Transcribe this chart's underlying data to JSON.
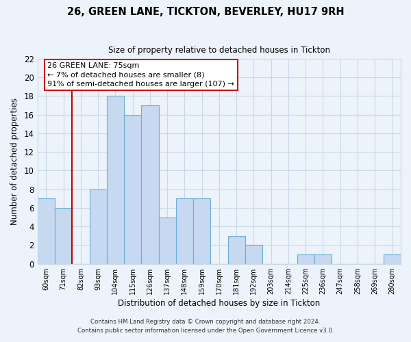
{
  "title": "26, GREEN LANE, TICKTON, BEVERLEY, HU17 9RH",
  "subtitle": "Size of property relative to detached houses in Tickton",
  "xlabel": "Distribution of detached houses by size in Tickton",
  "ylabel": "Number of detached properties",
  "bar_labels": [
    "60sqm",
    "71sqm",
    "82sqm",
    "93sqm",
    "104sqm",
    "115sqm",
    "126sqm",
    "137sqm",
    "148sqm",
    "159sqm",
    "170sqm",
    "181sqm",
    "192sqm",
    "203sqm",
    "214sqm",
    "225sqm",
    "236sqm",
    "247sqm",
    "258sqm",
    "269sqm",
    "280sqm"
  ],
  "bar_values": [
    7,
    6,
    0,
    8,
    18,
    16,
    17,
    5,
    7,
    7,
    0,
    3,
    2,
    0,
    0,
    1,
    1,
    0,
    0,
    0,
    1
  ],
  "bar_color": "#c6d9f0",
  "bar_edge_color": "#6aaed6",
  "ylim": [
    0,
    22
  ],
  "yticks": [
    0,
    2,
    4,
    6,
    8,
    10,
    12,
    14,
    16,
    18,
    20,
    22
  ],
  "grid_color": "#c8d8e8",
  "background_color": "#edf3fb",
  "property_line_label": "26 GREEN LANE: 75sqm",
  "annotation_line1": "← 7% of detached houses are smaller (8)",
  "annotation_line2": "91% of semi-detached houses are larger (107) →",
  "annotation_box_color": "#ffffff",
  "annotation_box_edge": "#cc0000",
  "property_line_color": "#cc0000",
  "footer1": "Contains HM Land Registry data © Crown copyright and database right 2024.",
  "footer2": "Contains public sector information licensed under the Open Government Licence v3.0."
}
